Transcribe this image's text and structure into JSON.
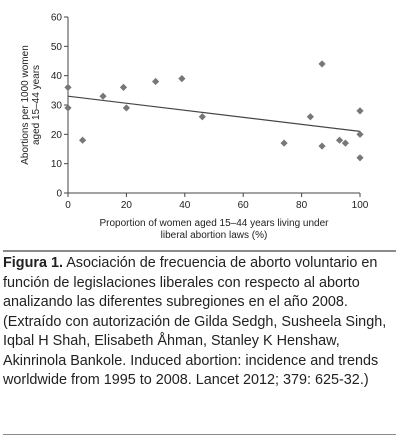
{
  "chart_data": {
    "type": "scatter",
    "xlabel": [
      "Proportion of women aged 15–44 years living under",
      "liberal abortion laws (%)"
    ],
    "ylabel": [
      "Abortions per 1000 women",
      "aged 15–44 years"
    ],
    "xlim": [
      0,
      100
    ],
    "ylim": [
      0,
      60
    ],
    "xticks": [
      "0",
      "20",
      "40",
      "60",
      "80",
      "100"
    ],
    "yticks": [
      "0",
      "10",
      "20",
      "30",
      "40",
      "50",
      "60"
    ],
    "grid": false,
    "marker": "diamond",
    "color": "#777777",
    "points": [
      {
        "x": 0,
        "y": 36
      },
      {
        "x": 0,
        "y": 29
      },
      {
        "x": 5,
        "y": 18
      },
      {
        "x": 12,
        "y": 33
      },
      {
        "x": 19,
        "y": 36
      },
      {
        "x": 20,
        "y": 29
      },
      {
        "x": 30,
        "y": 38
      },
      {
        "x": 39,
        "y": 39
      },
      {
        "x": 46,
        "y": 26
      },
      {
        "x": 74,
        "y": 17
      },
      {
        "x": 83,
        "y": 26
      },
      {
        "x": 87,
        "y": 44
      },
      {
        "x": 87,
        "y": 16
      },
      {
        "x": 93,
        "y": 18
      },
      {
        "x": 95,
        "y": 17
      },
      {
        "x": 100,
        "y": 28
      },
      {
        "x": 100,
        "y": 20
      },
      {
        "x": 100,
        "y": 12
      }
    ],
    "trendline": {
      "x": [
        0,
        100
      ],
      "y": [
        33,
        21
      ]
    }
  },
  "caption": {
    "label": "Figura 1.",
    "text": " Asociación de frecuencia de aborto voluntario en función de legislaciones liberales con respecto al aborto analizando las diferentes subregiones en el año 2008. (Extraído con autorización de Gilda Sedgh, Susheela Singh, Iqbal H Shah, Elisabeth Åhman, Stanley K Henshaw, Akinrinola Bankole. Induced abortion: incidence and trends worldwide from 1995 to 2008. Lancet 2012; 379: 625-32.)"
  }
}
